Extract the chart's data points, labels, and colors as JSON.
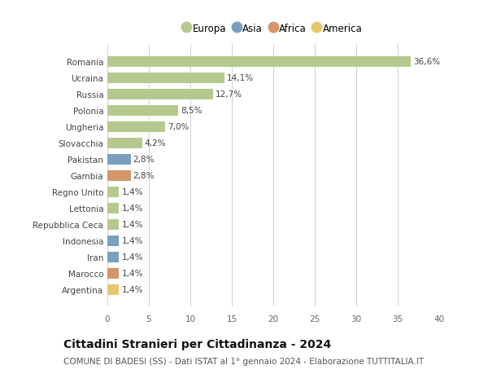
{
  "countries": [
    "Romania",
    "Ucraina",
    "Russia",
    "Polonia",
    "Ungheria",
    "Slovacchia",
    "Pakistan",
    "Gambia",
    "Regno Unito",
    "Lettonia",
    "Repubblica Ceca",
    "Indonesia",
    "Iran",
    "Marocco",
    "Argentina"
  ],
  "values": [
    36.6,
    14.1,
    12.7,
    8.5,
    7.0,
    4.2,
    2.8,
    2.8,
    1.4,
    1.4,
    1.4,
    1.4,
    1.4,
    1.4,
    1.4
  ],
  "labels": [
    "36,6%",
    "14,1%",
    "12,7%",
    "8,5%",
    "7,0%",
    "4,2%",
    "2,8%",
    "2,8%",
    "1,4%",
    "1,4%",
    "1,4%",
    "1,4%",
    "1,4%",
    "1,4%",
    "1,4%"
  ],
  "continents": [
    "Europa",
    "Europa",
    "Europa",
    "Europa",
    "Europa",
    "Europa",
    "Asia",
    "Africa",
    "Europa",
    "Europa",
    "Europa",
    "Asia",
    "Asia",
    "Africa",
    "America"
  ],
  "continent_colors": {
    "Europa": "#b5c98e",
    "Asia": "#7b9fbe",
    "Africa": "#d4956a",
    "America": "#e8c96a"
  },
  "legend_order": [
    "Europa",
    "Asia",
    "Africa",
    "America"
  ],
  "title": "Cittadini Stranieri per Cittadinanza - 2024",
  "subtitle": "COMUNE DI BADESI (SS) - Dati ISTAT al 1° gennaio 2024 - Elaborazione TUTTITALIA.IT",
  "xlim": [
    0,
    40
  ],
  "xticks": [
    0,
    5,
    10,
    15,
    20,
    25,
    30,
    35,
    40
  ],
  "background_color": "#ffffff",
  "grid_color": "#d0d0d0",
  "title_fontsize": 10,
  "subtitle_fontsize": 7.5,
  "label_fontsize": 7.5,
  "tick_fontsize": 7.5,
  "legend_fontsize": 8.5
}
